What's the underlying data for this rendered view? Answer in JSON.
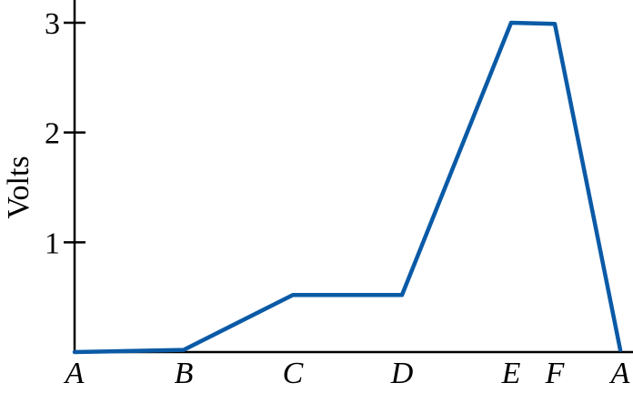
{
  "chart_data": {
    "type": "line",
    "title": "",
    "xlabel": "",
    "ylabel": "Volts",
    "x_positions": [
      0,
      1,
      2,
      3,
      4,
      4.4,
      5
    ],
    "categories": [
      "A",
      "B",
      "C",
      "D",
      "E",
      "F",
      "A"
    ],
    "values": [
      0.0,
      0.02,
      0.52,
      0.52,
      3.0,
      2.99,
      0.02
    ],
    "ylim": [
      0,
      3
    ],
    "yticks": [
      1,
      2,
      3
    ],
    "ytick_labels": [
      "1",
      "2",
      "3"
    ],
    "grid": false,
    "legend": "none",
    "line_color": "#0a5aa6",
    "axis_color": "#000000"
  }
}
